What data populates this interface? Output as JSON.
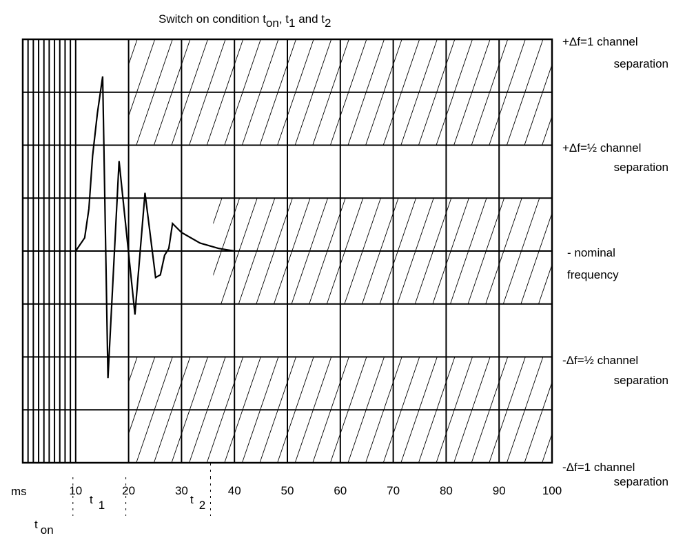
{
  "chart_data": {
    "type": "line",
    "title_parts": {
      "prefix": "Switch on condition t",
      "on": "on",
      "sep1": ", t",
      "one": "1",
      "and": " and t",
      "two": "2"
    },
    "x_unit": "ms",
    "xlim": [
      0,
      100
    ],
    "x_ticks": [
      10,
      20,
      30,
      40,
      50,
      60,
      70,
      80,
      90,
      100
    ],
    "dense_grid_x": [
      1,
      2,
      3,
      4,
      5,
      6,
      7,
      8,
      9
    ],
    "ylim": [
      -4,
      4
    ],
    "y_grid_step": 1,
    "right_labels": [
      {
        "y": 4,
        "line1": "+Δf=1 channel",
        "line2": "separation"
      },
      {
        "y": 2,
        "line1": "+Δf=½ channel",
        "line2": "separation"
      },
      {
        "y": 0,
        "line1": "- nominal",
        "line2": "frequency"
      },
      {
        "y": -2,
        "line1": "-Δf=½ channel",
        "line2": "separation"
      },
      {
        "y": -4,
        "line1": "-Δf=1 channel",
        "line2": "separation"
      }
    ],
    "time_markers": {
      "t1": {
        "t": "t",
        "sub": "1"
      },
      "t2": {
        "t": "t",
        "sub": "2"
      },
      "ton": {
        "t": "t",
        "sub": "on"
      }
    },
    "hatched_regions": [
      {
        "x": [
          20,
          100
        ],
        "y": [
          -4,
          -2
        ]
      },
      {
        "x": [
          20,
          100
        ],
        "y": [
          2,
          4
        ]
      },
      {
        "x": [
          36,
          100
        ],
        "y": [
          -1,
          1
        ]
      }
    ],
    "series": [
      {
        "x": [
          10,
          11.7,
          12.5,
          13.2,
          14.1,
          15.1,
          16.1,
          18.2,
          21.2,
          23.1,
          25.1,
          26.0,
          26.8,
          27.6,
          28.3,
          30.0,
          33.5,
          37.0,
          40.0
        ],
        "y": [
          0,
          0.25,
          0.8,
          1.8,
          2.6,
          3.3,
          -2.4,
          1.7,
          -1.2,
          1.1,
          -0.5,
          -0.45,
          -0.08,
          0.05,
          0.52,
          0.35,
          0.15,
          0.05,
          0
        ]
      }
    ]
  }
}
